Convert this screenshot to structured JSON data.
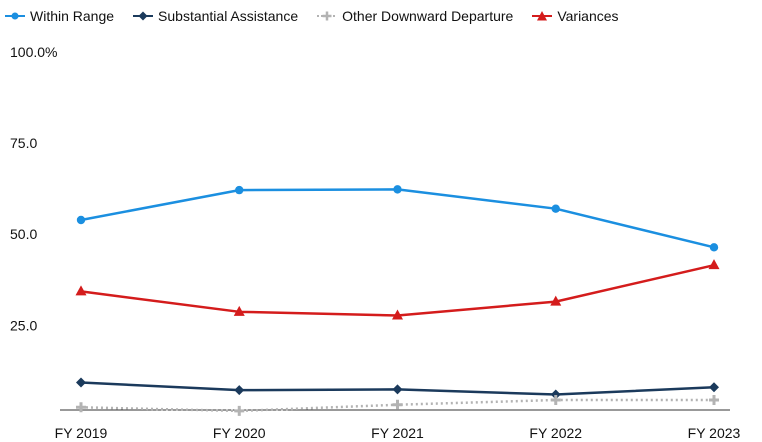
{
  "chart_data": {
    "type": "line",
    "title": "",
    "xlabel": "",
    "ylabel": "",
    "categories": [
      "FY 2019",
      "FY 2020",
      "FY 2021",
      "FY 2022",
      "FY 2023"
    ],
    "ylim": [
      0,
      100
    ],
    "yticks": [
      {
        "value": 25,
        "label": "25.0"
      },
      {
        "value": 50,
        "label": "50.0"
      },
      {
        "value": 75,
        "label": "75.0"
      },
      {
        "value": 100,
        "label": "100.0%"
      }
    ],
    "grid": false,
    "legend_position": "top-left",
    "series": [
      {
        "name": "Within Range",
        "values": [
          53.9,
          62.1,
          62.3,
          57.0,
          46.4
        ],
        "color": "#1b8fe0",
        "marker": "circle",
        "dash": "solid"
      },
      {
        "name": "Substantial Assistance",
        "values": [
          9.3,
          7.2,
          7.4,
          6.0,
          8.0
        ],
        "color": "#1b3a5c",
        "marker": "diamond",
        "dash": "solid"
      },
      {
        "name": "Other Downward Departure",
        "values": [
          2.5,
          1.5,
          3.2,
          4.5,
          4.5
        ],
        "color": "#b3b3b3",
        "marker": "plus",
        "dash": "dotted"
      },
      {
        "name": "Variances",
        "values": [
          34.3,
          28.7,
          27.7,
          31.5,
          41.5
        ],
        "color": "#d41c1c",
        "marker": "triangle",
        "dash": "solid"
      }
    ]
  }
}
